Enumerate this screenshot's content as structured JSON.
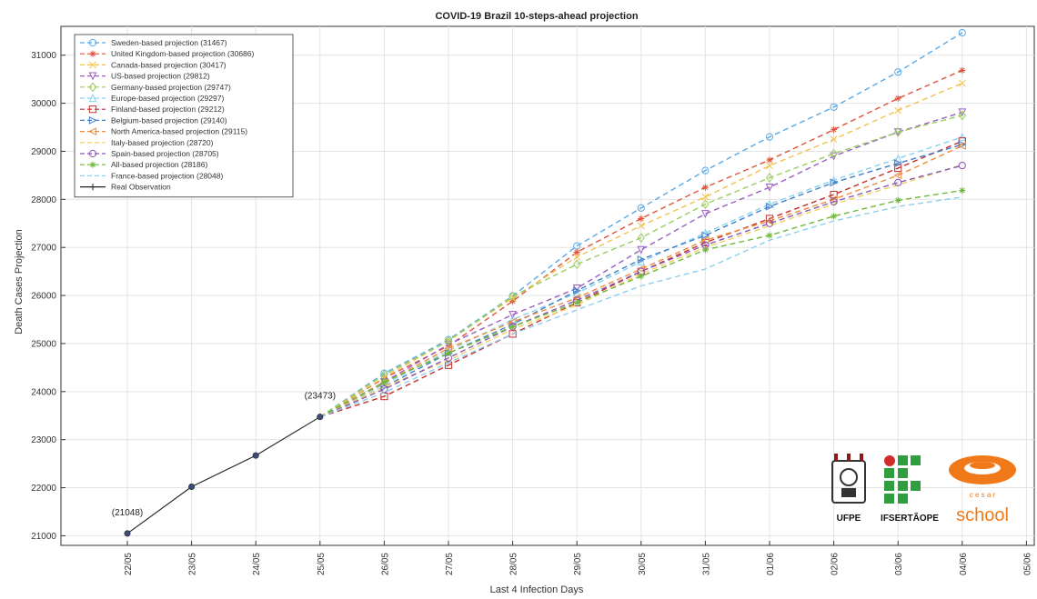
{
  "chart_data": {
    "type": "line",
    "title": "COVID-19 Brazil 10-steps-ahead projection",
    "xlabel": "Last 4 Infection Days",
    "ylabel": "Death Cases Projection",
    "categories": [
      "22/05",
      "23/05",
      "24/05",
      "25/05",
      "26/05",
      "27/05",
      "28/05",
      "29/05",
      "30/05",
      "31/05",
      "01/06",
      "02/06",
      "03/06",
      "04/06",
      "05/06"
    ],
    "ylim": [
      20800,
      31600
    ],
    "yticks": [
      "21000",
      "22000",
      "23000",
      "24000",
      "25000",
      "26000",
      "27000",
      "28000",
      "29000",
      "30000",
      "31000"
    ],
    "grid": true,
    "legend_position": "top-left",
    "annotations": [
      {
        "text": "(21048)",
        "x_index": 0,
        "y": 21048
      },
      {
        "text": "(23473)",
        "x_index": 3,
        "y": 23473
      }
    ],
    "series": [
      {
        "name": "Sweden-based projection (31467)",
        "color": "#5aa9e6",
        "marker": "o",
        "values": [
          null,
          null,
          null,
          23473,
          24380,
          25080,
          25990,
          27030,
          27820,
          28600,
          29300,
          29920,
          30650,
          31467,
          null
        ]
      },
      {
        "name": "United Kingdom-based projection (30686)",
        "color": "#e0533a",
        "marker": "*",
        "values": [
          null,
          null,
          null,
          23473,
          24280,
          24950,
          25880,
          26900,
          27600,
          28250,
          28820,
          29450,
          30100,
          30686,
          null
        ]
      },
      {
        "name": "Canada-based projection (30417)",
        "color": "#f2c24e",
        "marker": "x",
        "values": [
          null,
          null,
          null,
          23473,
          24300,
          25060,
          25950,
          26800,
          27450,
          28050,
          28700,
          29250,
          29850,
          30417,
          null
        ]
      },
      {
        "name": "US-based projection (29812)",
        "color": "#9b5fc0",
        "marker": "v",
        "values": [
          null,
          null,
          null,
          23473,
          24200,
          24980,
          25600,
          26150,
          26950,
          27700,
          28250,
          28900,
          29400,
          29812,
          null
        ]
      },
      {
        "name": "Germany-based projection (29747)",
        "color": "#9acd5e",
        "marker": "d",
        "values": [
          null,
          null,
          null,
          23473,
          24350,
          25050,
          25980,
          26650,
          27200,
          27900,
          28450,
          28950,
          29400,
          29747,
          null
        ]
      },
      {
        "name": "Europe-based projection (29297)",
        "color": "#86d3f0",
        "marker": "^",
        "values": [
          null,
          null,
          null,
          23473,
          24150,
          24850,
          25500,
          26050,
          26700,
          27300,
          27900,
          28400,
          28850,
          29297,
          null
        ]
      },
      {
        "name": "Finland-based projection (29212)",
        "color": "#c2312c",
        "marker": "s",
        "values": [
          null,
          null,
          null,
          23473,
          23900,
          24550,
          25200,
          25850,
          26500,
          27100,
          27600,
          28100,
          28650,
          29212,
          null
        ]
      },
      {
        "name": "Belgium-based projection (29140)",
        "color": "#3f7fc8",
        "marker": ">",
        "values": [
          null,
          null,
          null,
          23473,
          24100,
          24800,
          25400,
          26100,
          26750,
          27250,
          27850,
          28350,
          28750,
          29140,
          null
        ]
      },
      {
        "name": "North America-based projection (29115)",
        "color": "#f08a3c",
        "marker": "<",
        "values": [
          null,
          null,
          null,
          23473,
          24180,
          24900,
          25450,
          25950,
          26550,
          27150,
          27550,
          28000,
          28500,
          29115,
          null
        ]
      },
      {
        "name": "Italy-based projection (28720)",
        "color": "#f0d060",
        "marker": "",
        "values": [
          null,
          null,
          null,
          23473,
          24100,
          24650,
          25300,
          25800,
          26450,
          27000,
          27450,
          27900,
          28300,
          28720,
          null
        ]
      },
      {
        "name": "Spain-based projection (28705)",
        "color": "#8a57b3",
        "marker": "o",
        "values": [
          null,
          null,
          null,
          23473,
          24050,
          24700,
          25350,
          25900,
          26500,
          27050,
          27500,
          27950,
          28350,
          28705,
          null
        ]
      },
      {
        "name": "All-based projection (28186)",
        "color": "#6eb83a",
        "marker": "*",
        "values": [
          null,
          null,
          null,
          23473,
          24200,
          24800,
          25350,
          25850,
          26400,
          26950,
          27250,
          27650,
          27980,
          28186,
          null
        ]
      },
      {
        "name": "France-based projection (28048)",
        "color": "#8ccfef",
        "marker": "",
        "values": [
          null,
          null,
          null,
          23473,
          23980,
          24600,
          25200,
          25700,
          26200,
          26550,
          27150,
          27550,
          27850,
          28048,
          null
        ]
      },
      {
        "name": "Real Observation",
        "color": "#222222",
        "marker": "+",
        "values": [
          21048,
          22020,
          22670,
          23473,
          null,
          null,
          null,
          null,
          null,
          null,
          null,
          null,
          null,
          null,
          null
        ]
      }
    ]
  },
  "logos": {
    "ufpe": "UFPE",
    "ifsertao": "IFSERTÃOPE",
    "cesar_top": "c e s a r",
    "cesar_bottom": "school"
  }
}
